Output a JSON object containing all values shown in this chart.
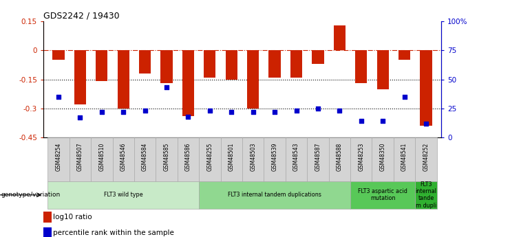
{
  "title": "GDS2242 / 19430",
  "samples": [
    "GSM48254",
    "GSM48507",
    "GSM48510",
    "GSM48546",
    "GSM48584",
    "GSM48585",
    "GSM48586",
    "GSM48255",
    "GSM48501",
    "GSM48503",
    "GSM48539",
    "GSM48543",
    "GSM48587",
    "GSM48588",
    "GSM48253",
    "GSM48350",
    "GSM48541",
    "GSM48252"
  ],
  "log10_ratio": [
    -0.05,
    -0.28,
    -0.16,
    -0.3,
    -0.12,
    -0.17,
    -0.34,
    -0.14,
    -0.15,
    -0.3,
    -0.14,
    -0.14,
    -0.07,
    0.13,
    -0.17,
    -0.2,
    -0.05,
    -0.39
  ],
  "percentile_rank": [
    35,
    17,
    22,
    22,
    23,
    43,
    18,
    23,
    22,
    22,
    22,
    23,
    25,
    23,
    14,
    14,
    35,
    12
  ],
  "groups": [
    {
      "label": "FLT3 wild type",
      "start": 0,
      "end": 6,
      "color": "#c8eac8"
    },
    {
      "label": "FLT3 internal tandem duplications",
      "start": 7,
      "end": 13,
      "color": "#90d890"
    },
    {
      "label": "FLT3 aspartic acid\nmutation",
      "start": 14,
      "end": 16,
      "color": "#58c858"
    },
    {
      "label": "FLT3\ninternal\ntande\nm dupli",
      "start": 17,
      "end": 17,
      "color": "#30b030"
    }
  ],
  "ylim_left": [
    -0.45,
    0.15
  ],
  "ylim_right": [
    0,
    100
  ],
  "yticks_left": [
    0.15,
    0,
    -0.15,
    -0.3,
    -0.45
  ],
  "yticks_right": [
    100,
    75,
    50,
    25,
    0
  ],
  "yticklabels_right": [
    "100%",
    "75",
    "50",
    "25",
    "0"
  ],
  "bar_color": "#cc2200",
  "scatter_color": "#0000cc",
  "dash_color": "#cc2200",
  "dotted_color": "#000000",
  "legend_red_label": "log10 ratio",
  "legend_blue_label": "percentile rank within the sample",
  "genotype_label": "genotype/variation",
  "background_color": "#ffffff",
  "tick_label_bg": "#d4d4d4",
  "tick_label_border": "#aaaaaa"
}
